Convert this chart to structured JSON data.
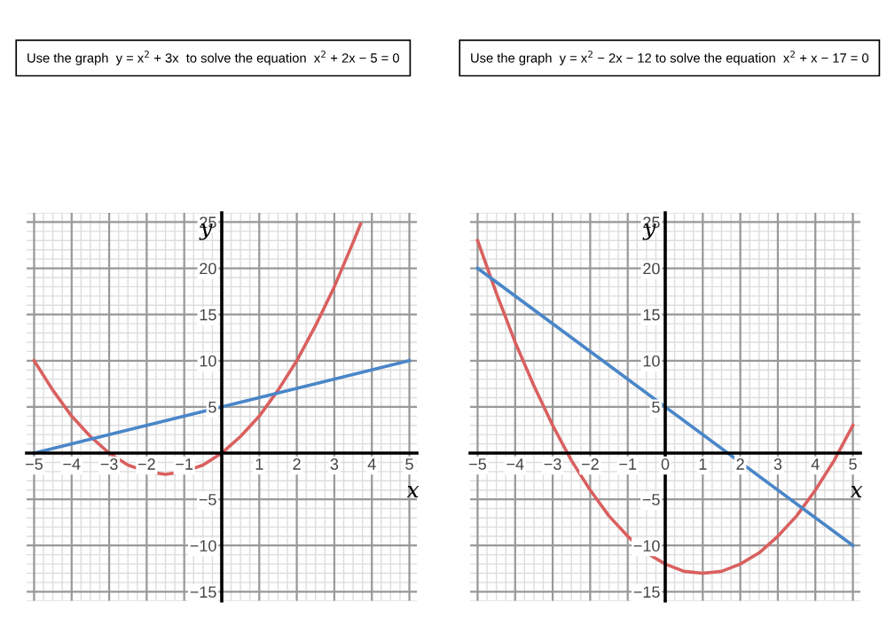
{
  "chart_data": [
    {
      "type": "line",
      "title": "Use the graph  y = x$^{2}$ + 3x  to solve the equation  x$^{2}$ + 2x − 5 = 0",
      "xlabel": "x",
      "ylabel": "y",
      "series": [
        {
          "color": "#d9605f",
          "x": [
            -5,
            -4.5,
            -4,
            -3.5,
            -3,
            -2.5,
            -2,
            -1.5,
            -1,
            -0.5,
            0,
            0.5,
            1,
            1.5,
            2,
            2.5,
            3,
            3.5,
            3.7
          ],
          "values": [
            10,
            6.8,
            4,
            1.8,
            0,
            -1.3,
            -2,
            -2.3,
            -2,
            -1.3,
            0,
            1.8,
            4,
            6.8,
            10,
            13.8,
            18,
            22.8,
            24.8
          ]
        },
        {
          "color": "#4a86c8",
          "x": [
            -5,
            5
          ],
          "values": [
            0,
            10
          ]
        }
      ],
      "xlim": [
        -5.2,
        5.2
      ],
      "ylim": [
        -16,
        26
      ],
      "xticks": [
        -5,
        -4,
        -3,
        -2,
        -1,
        {
          "value": 0,
          "label": null
        },
        1,
        2,
        3,
        4,
        5
      ],
      "yticks": [
        -15,
        -10,
        -5,
        {
          "value": 0,
          "label": null
        },
        5,
        10,
        15,
        20,
        25
      ],
      "grid": true
    },
    {
      "type": "line",
      "title": "Use the graph  y = x$^{2}$ − 2x − 12 to solve the equation  x$^{2}$ + x − 17 = 0",
      "xlabel": "x",
      "ylabel": "y",
      "series": [
        {
          "color": "#d9605f",
          "x": [
            -5,
            -4.5,
            -4,
            -3.5,
            -3,
            -2.5,
            -2,
            -1.5,
            -1,
            -0.5,
            0,
            0.5,
            1,
            1.5,
            2,
            2.5,
            3,
            3.5,
            4,
            4.5,
            5
          ],
          "values": [
            23,
            17.3,
            12,
            7.3,
            3,
            -0.8,
            -4,
            -6.8,
            -9,
            -10.8,
            -12,
            -12.8,
            -13,
            -12.8,
            -12,
            -10.8,
            -9,
            -6.8,
            -4,
            -0.8,
            3
          ]
        },
        {
          "color": "#4a86c8",
          "x": [
            -5,
            5
          ],
          "values": [
            20,
            -10
          ]
        }
      ],
      "xlim": [
        -5.2,
        5.2
      ],
      "ylim": [
        -16,
        26
      ],
      "xticks": [
        -5,
        -4,
        -3,
        -2,
        -1,
        0,
        1,
        2,
        3,
        4,
        5
      ],
      "yticks": [
        -15,
        -10,
        -5,
        {
          "value": 0,
          "label": null
        },
        5,
        10,
        15,
        20,
        25
      ],
      "grid": true
    }
  ]
}
